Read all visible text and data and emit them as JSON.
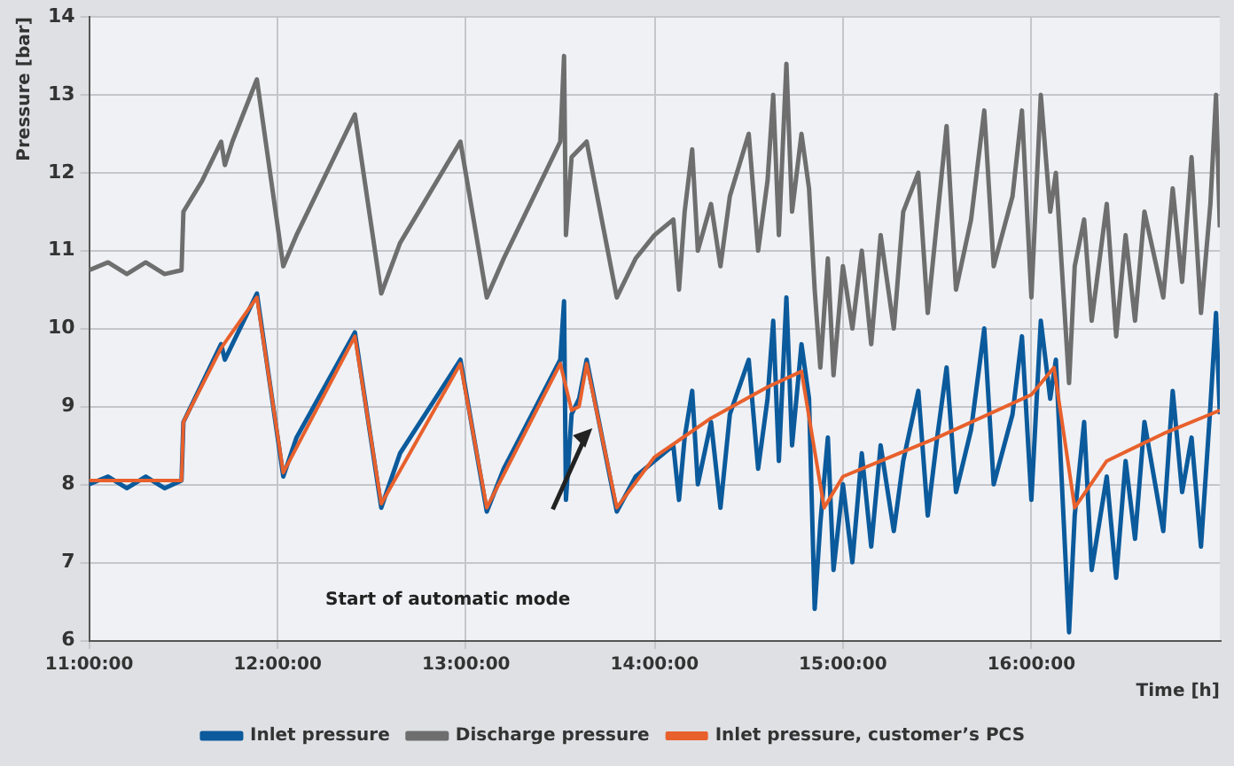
{
  "chart_data": {
    "type": "line",
    "xlabel": "Time [h]",
    "ylabel": "Pressure [bar]",
    "xlim": [
      11,
      17
    ],
    "xticks": [
      {
        "value": 11,
        "label": "11:00:00"
      },
      {
        "value": 12,
        "label": "12:00:00"
      },
      {
        "value": 13,
        "label": "13:00:00"
      },
      {
        "value": 14,
        "label": "14:00:00"
      },
      {
        "value": 15,
        "label": "15:00:00"
      },
      {
        "value": 16,
        "label": "16:00:00"
      }
    ],
    "ylim": [
      6,
      14
    ],
    "yticks": [
      6,
      7,
      8,
      9,
      10,
      11,
      12,
      13,
      14
    ],
    "grid": true,
    "legend": "bottom",
    "annotations": [
      "Start of automatic mode"
    ],
    "series": [
      {
        "name": "Inlet pressure",
        "color": "#0a5a9c",
        "x": [
          11,
          11.1,
          11.2,
          11.3,
          11.4,
          11.49,
          11.5,
          11.6,
          11.7,
          11.72,
          11.76,
          11.89,
          12.03,
          12.1,
          12.41,
          12.55,
          12.65,
          12.97,
          13.11,
          13.2,
          13.5,
          13.52,
          13.53,
          13.56,
          13.6,
          13.64,
          13.8,
          13.9,
          14.0,
          14.1,
          14.13,
          14.16,
          14.2,
          14.23,
          14.3,
          14.35,
          14.4,
          14.5,
          14.55,
          14.6,
          14.63,
          14.66,
          14.7,
          14.73,
          14.78,
          14.82,
          14.85,
          14.88,
          14.92,
          14.95,
          15.0,
          15.05,
          15.1,
          15.15,
          15.2,
          15.27,
          15.32,
          15.4,
          15.45,
          15.5,
          15.55,
          15.6,
          15.68,
          15.75,
          15.8,
          15.9,
          15.95,
          16.0,
          16.05,
          16.1,
          16.13,
          16.2,
          16.23,
          16.28,
          16.32,
          16.4,
          16.45,
          16.5,
          16.55,
          16.6,
          16.7,
          16.75,
          16.8,
          16.85,
          16.9,
          16.95,
          16.98,
          17.0
        ],
        "values": [
          8.0,
          8.1,
          7.95,
          8.1,
          7.95,
          8.05,
          8.8,
          9.3,
          9.8,
          9.6,
          9.8,
          10.45,
          8.1,
          8.6,
          9.95,
          7.7,
          8.4,
          9.6,
          7.65,
          8.2,
          9.6,
          10.35,
          7.8,
          8.9,
          9.1,
          9.6,
          7.65,
          8.1,
          8.3,
          8.5,
          7.8,
          8.6,
          9.2,
          8.0,
          8.8,
          7.7,
          8.9,
          9.6,
          8.2,
          9.1,
          10.1,
          8.3,
          10.4,
          8.5,
          9.8,
          9.1,
          6.4,
          7.5,
          8.6,
          6.9,
          8.0,
          7.0,
          8.4,
          7.2,
          8.5,
          7.4,
          8.3,
          9.2,
          7.6,
          8.6,
          9.5,
          7.9,
          8.7,
          10.0,
          8.0,
          8.9,
          9.9,
          7.8,
          10.1,
          9.1,
          9.6,
          6.1,
          7.6,
          8.8,
          6.9,
          8.1,
          6.8,
          8.3,
          7.3,
          8.8,
          7.4,
          9.2,
          7.9,
          8.6,
          7.2,
          9.0,
          10.2,
          8.9
        ]
      },
      {
        "name": "Discharge pressure",
        "color": "#6e6e6e",
        "x": [
          11,
          11.1,
          11.2,
          11.3,
          11.4,
          11.49,
          11.5,
          11.6,
          11.7,
          11.72,
          11.76,
          11.89,
          12.03,
          12.1,
          12.41,
          12.55,
          12.65,
          12.97,
          13.11,
          13.2,
          13.5,
          13.52,
          13.53,
          13.56,
          13.6,
          13.64,
          13.8,
          13.9,
          14.0,
          14.1,
          14.13,
          14.16,
          14.2,
          14.23,
          14.3,
          14.35,
          14.4,
          14.5,
          14.55,
          14.6,
          14.63,
          14.66,
          14.7,
          14.73,
          14.78,
          14.82,
          14.85,
          14.88,
          14.92,
          14.95,
          15.0,
          15.05,
          15.1,
          15.15,
          15.2,
          15.27,
          15.32,
          15.4,
          15.45,
          15.5,
          15.55,
          15.6,
          15.68,
          15.75,
          15.8,
          15.9,
          15.95,
          16.0,
          16.05,
          16.1,
          16.13,
          16.2,
          16.23,
          16.28,
          16.32,
          16.4,
          16.45,
          16.5,
          16.55,
          16.6,
          16.7,
          16.75,
          16.8,
          16.85,
          16.9,
          16.95,
          16.98,
          17.0
        ],
        "values": [
          10.75,
          10.85,
          10.7,
          10.85,
          10.7,
          10.75,
          11.5,
          11.9,
          12.4,
          12.1,
          12.4,
          13.2,
          10.8,
          11.2,
          12.75,
          10.45,
          11.1,
          12.4,
          10.4,
          10.9,
          12.4,
          13.5,
          11.2,
          12.2,
          12.3,
          12.4,
          10.4,
          10.9,
          11.2,
          11.4,
          10.5,
          11.5,
          12.3,
          11.0,
          11.6,
          10.8,
          11.7,
          12.5,
          11.0,
          11.9,
          13.0,
          11.2,
          13.4,
          11.5,
          12.5,
          11.8,
          10.5,
          9.5,
          10.9,
          9.4,
          10.8,
          10.0,
          11.0,
          9.8,
          11.2,
          10.0,
          11.5,
          12.0,
          10.2,
          11.4,
          12.6,
          10.5,
          11.4,
          12.8,
          10.8,
          11.7,
          12.8,
          10.4,
          13.0,
          11.5,
          12.0,
          9.3,
          10.8,
          11.4,
          10.1,
          11.6,
          9.9,
          11.2,
          10.1,
          11.5,
          10.4,
          11.8,
          10.6,
          12.2,
          10.2,
          11.6,
          13.0,
          11.3
        ]
      },
      {
        "name": "Inlet pressure, customer’s PCS",
        "color": "#e8602c",
        "x": [
          11,
          11.49,
          11.5,
          11.7,
          11.89,
          12.03,
          12.41,
          12.55,
          12.97,
          13.11,
          13.5,
          13.56,
          13.6,
          13.64,
          13.8,
          14.0,
          14.3,
          14.6,
          14.78,
          14.9,
          15.0,
          15.5,
          16.0,
          16.12,
          16.23,
          16.4,
          16.7,
          16.95,
          17.0
        ],
        "values": [
          8.05,
          8.05,
          8.8,
          9.75,
          10.4,
          8.15,
          9.9,
          7.75,
          9.55,
          7.7,
          9.55,
          8.95,
          9.0,
          9.55,
          7.7,
          8.35,
          8.85,
          9.25,
          9.45,
          7.7,
          8.1,
          8.6,
          9.15,
          9.5,
          7.7,
          8.3,
          8.65,
          8.9,
          8.95
        ]
      }
    ]
  }
}
